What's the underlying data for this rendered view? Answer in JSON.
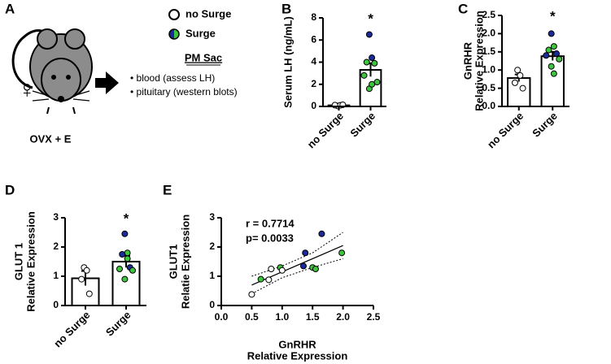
{
  "panel_a": {
    "panel": "A",
    "sex_symbol": "♀",
    "treatment": "OVX + E",
    "legend": [
      "no Surge",
      "Surge"
    ],
    "procedure_title": "PM Sac",
    "procedure_items": [
      "• blood (assess LH)",
      "• pituitary (western blots)"
    ]
  },
  "chart_data": [
    {
      "type": "bar",
      "panel": "B",
      "ylabel": [
        "Serum LH (ng/mL)"
      ],
      "categories": [
        "no Surge",
        "Surge"
      ],
      "values": [
        0.1,
        3.3
      ],
      "errors": [
        0.05,
        0.6
      ],
      "points": [
        [
          0.05,
          0.1,
          0.12,
          0.15
        ],
        [
          6.5,
          4.4,
          4.0,
          3.9,
          2.8,
          2.2,
          1.6,
          2.0
        ]
      ],
      "point_colors": [
        [
          "#ffffff",
          "#ffffff",
          "#ffffff",
          "#ffffff"
        ],
        [
          "#1a2a9c",
          "#1a2a9c",
          "#3ec43e",
          "#3ec43e",
          "#3ec43e",
          "#3ec43e",
          "#3ec43e",
          "#3ec43e"
        ]
      ],
      "significance": "*",
      "ylim": [
        0,
        8
      ],
      "yticks": [
        0,
        2,
        4,
        6,
        8
      ]
    },
    {
      "type": "bar",
      "panel": "C",
      "ylabel": [
        "GnRHR",
        "Relative Expression"
      ],
      "categories": [
        "no Surge",
        "Surge"
      ],
      "values": [
        0.78,
        1.38
      ],
      "errors": [
        0.1,
        0.12
      ],
      "points": [
        [
          1.0,
          0.85,
          0.65,
          0.5
        ],
        [
          2.0,
          1.65,
          1.55,
          1.45,
          1.4,
          1.3,
          1.1,
          0.9
        ]
      ],
      "point_colors": [
        [
          "#ffffff",
          "#ffffff",
          "#ffffff",
          "#ffffff"
        ],
        [
          "#1a2a9c",
          "#3ec43e",
          "#3ec43e",
          "#1a2a9c",
          "#1a2a9c",
          "#3ec43e",
          "#3ec43e",
          "#3ec43e"
        ]
      ],
      "significance": "*",
      "ylim": [
        0,
        2.5
      ],
      "yticks": [
        {
          "value": 0,
          "label": "0.0"
        },
        0.5,
        {
          "value": 1,
          "label": "1.0"
        },
        1.5,
        {
          "value": 2,
          "label": "2.0"
        },
        2.5
      ]
    },
    {
      "type": "bar",
      "panel": "D",
      "ylabel": [
        "GLUT 1",
        "Relative Expression"
      ],
      "categories": [
        "no Surge",
        "Surge"
      ],
      "values": [
        0.93,
        1.5
      ],
      "errors": [
        0.25,
        0.2
      ],
      "points": [
        [
          1.3,
          1.2,
          0.9,
          0.4
        ],
        [
          2.45,
          1.8,
          1.75,
          1.3,
          1.25,
          1.2,
          0.9,
          1.6
        ]
      ],
      "point_colors": [
        [
          "#ffffff",
          "#ffffff",
          "#ffffff",
          "#ffffff"
        ],
        [
          "#1a2a9c",
          "#3ec43e",
          "#1a2a9c",
          "#1a2a9c",
          "#3ec43e",
          "#3ec43e",
          "#3ec43e",
          "#3ec43e"
        ]
      ],
      "significance": "*",
      "ylim": [
        0,
        3
      ],
      "yticks": [
        0,
        1,
        2,
        3
      ]
    },
    {
      "type": "scatter",
      "panel": "E",
      "ylabel": [
        "GLUT1",
        "Relatie Expression"
      ],
      "xlabel": [
        "GnRHR",
        "Relative Expression"
      ],
      "stats": [
        "r = 0.7714",
        "p= 0.0033"
      ],
      "x": [
        0.5,
        0.65,
        0.78,
        0.82,
        0.97,
        1.0,
        1.35,
        1.38,
        1.5,
        1.55,
        1.65,
        1.98
      ],
      "y": [
        0.38,
        0.9,
        0.88,
        1.25,
        1.3,
        1.2,
        1.35,
        1.8,
        1.3,
        1.25,
        2.45,
        1.8
      ],
      "colors": [
        "#ffffff",
        "#3ec43e",
        "#ffffff",
        "#ffffff",
        "#3ec43e",
        "#ffffff",
        "#1a2a9c",
        "#1a2a9c",
        "#3ec43e",
        "#3ec43e",
        "#1a2a9c",
        "#3ec43e"
      ],
      "fit": {
        "x": [
          0.5,
          2.0
        ],
        "y": [
          0.7,
          2.05
        ]
      },
      "band": {
        "x": [
          0.5,
          1.0,
          1.5,
          2.0
        ],
        "lower": [
          0.4,
          0.95,
          1.3,
          1.6
        ],
        "upper": [
          1.0,
          1.35,
          1.8,
          2.5
        ]
      },
      "xlim": [
        0,
        2.5
      ],
      "ylim": [
        0,
        3
      ],
      "xticks": [
        {
          "value": 0,
          "label": "0.0"
        },
        0.5,
        {
          "value": 1,
          "label": "1.0"
        },
        1.5,
        {
          "value": 2,
          "label": "2.0"
        },
        2.5
      ],
      "yticks": [
        0,
        1,
        2,
        3
      ]
    }
  ]
}
